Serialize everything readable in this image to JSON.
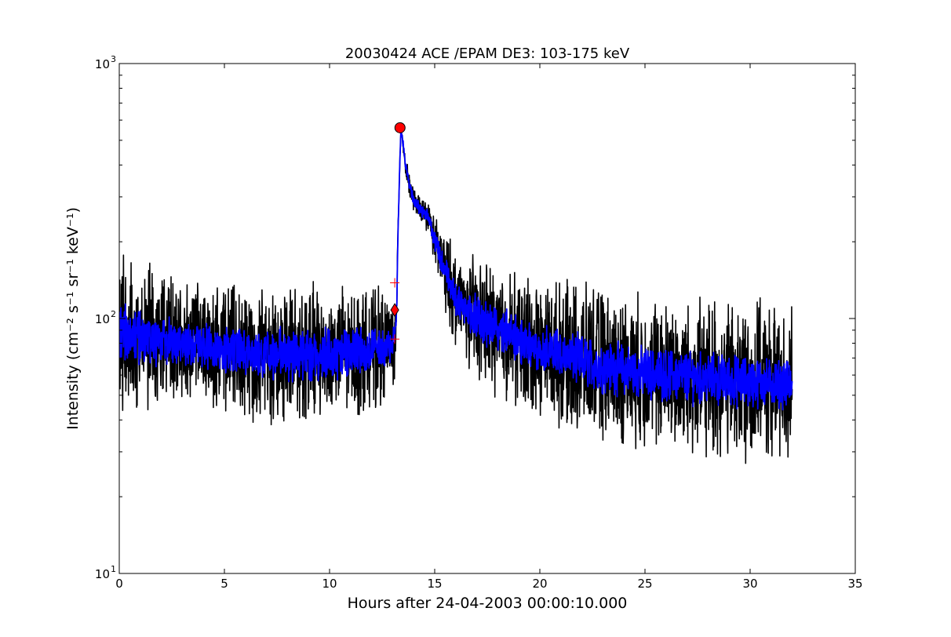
{
  "chart_data": {
    "type": "line",
    "title": "20030424 ACE /EPAM DE3: 103-175 keV",
    "xlabel": "Hours after 24-04-2003 00:00:10.000",
    "ylabel": "Intensity (cm⁻² s⁻¹ sr⁻¹ keV⁻¹)",
    "xlim": [
      0,
      35
    ],
    "ylim": [
      10,
      1000
    ],
    "yscale": "log",
    "xticks": [
      0,
      5,
      10,
      15,
      20,
      25,
      30,
      35
    ],
    "xtick_labels": [
      "0",
      "5",
      "10",
      "15",
      "20",
      "25",
      "30",
      "35"
    ],
    "yticks": [
      10,
      100,
      1000
    ],
    "ytick_labels": [
      "10",
      "10",
      "10"
    ],
    "ytick_exponents": [
      "1",
      "2",
      "3"
    ],
    "grid": false,
    "series": [
      {
        "color": "#000000",
        "style": "noisy-line",
        "x": [
          0,
          1,
          2,
          3,
          4,
          5,
          6,
          7,
          8,
          9,
          10,
          11,
          12,
          13,
          13.1,
          13.2,
          13.3,
          13.4,
          13.6,
          13.8,
          14,
          14.3,
          14.7,
          15,
          15.5,
          16,
          17,
          18,
          19,
          20,
          21,
          22,
          23,
          24,
          25,
          26,
          27,
          28,
          29,
          30,
          31,
          32
        ],
        "values": [
          88,
          84,
          82,
          80,
          78,
          76,
          74,
          73,
          72,
          72,
          73,
          74,
          76,
          78,
          82,
          110,
          300,
          560,
          400,
          330,
          290,
          270,
          250,
          200,
          150,
          120,
          100,
          90,
          82,
          76,
          72,
          68,
          65,
          63,
          61,
          60,
          59,
          58,
          57,
          56,
          56,
          55
        ],
        "noise": [
          1.9,
          1.7,
          1.65,
          1.6,
          1.6,
          1.6,
          1.6,
          1.65,
          1.7,
          1.7,
          1.65,
          1.6,
          1.55,
          1.5,
          1.3,
          1.1,
          1.05,
          1.05,
          1.08,
          1.08,
          1.1,
          1.1,
          1.12,
          1.2,
          1.35,
          1.45,
          1.55,
          1.6,
          1.65,
          1.7,
          1.7,
          1.75,
          1.75,
          1.75,
          1.75,
          1.75,
          1.75,
          1.78,
          1.8,
          1.8,
          1.75,
          1.7
        ]
      },
      {
        "color": "#0000ff",
        "style": "smoothed-line",
        "x": [
          0,
          1,
          2,
          3,
          4,
          5,
          6,
          7,
          8,
          9,
          10,
          11,
          12,
          13,
          13.1,
          13.2,
          13.3,
          13.4,
          13.6,
          13.8,
          14,
          14.3,
          14.7,
          15,
          15.5,
          16,
          17,
          18,
          19,
          20,
          21,
          22,
          23,
          24,
          25,
          26,
          27,
          28,
          29,
          30,
          31,
          32
        ],
        "values": [
          88,
          84,
          82,
          80,
          78,
          76,
          74,
          73,
          72,
          72,
          73,
          74,
          76,
          78,
          82,
          110,
          300,
          560,
          400,
          330,
          290,
          270,
          250,
          200,
          150,
          120,
          100,
          90,
          82,
          76,
          72,
          68,
          65,
          63,
          61,
          60,
          59,
          58,
          57,
          56,
          56,
          55
        ],
        "noise": [
          1.25,
          1.22,
          1.2,
          1.2,
          1.2,
          1.2,
          1.2,
          1.2,
          1.22,
          1.22,
          1.2,
          1.2,
          1.18,
          1.15,
          1.1,
          1.05,
          1.02,
          1.02,
          1.04,
          1.04,
          1.05,
          1.05,
          1.06,
          1.08,
          1.12,
          1.15,
          1.18,
          1.2,
          1.2,
          1.2,
          1.2,
          1.22,
          1.22,
          1.22,
          1.22,
          1.22,
          1.22,
          1.22,
          1.22,
          1.22,
          1.2,
          1.2
        ]
      }
    ],
    "markers": [
      {
        "type": "circle",
        "color": "#ff0000",
        "x": 13.35,
        "y": 560
      },
      {
        "type": "diamond",
        "color": "#ff0000",
        "x": 13.1,
        "y": 108
      },
      {
        "type": "plus",
        "color": "#ff0000",
        "x": 13.1,
        "y": 138
      },
      {
        "type": "plus",
        "color": "#ff0000",
        "x": 13.1,
        "y": 83
      }
    ]
  }
}
